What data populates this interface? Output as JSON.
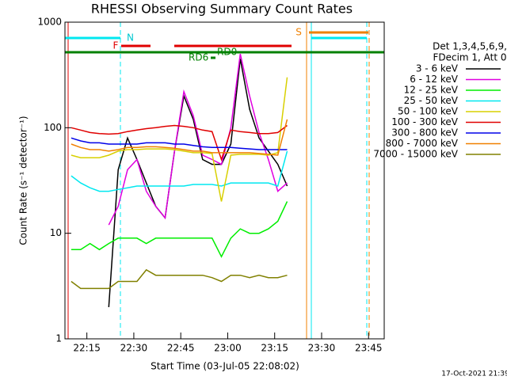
{
  "chart_data": {
    "type": "line",
    "title": "RHESSI Observing Summary Count Rates",
    "x_label": "Start Time (03-Jul-05 22:08:02)",
    "y_label": "Count Rate (s⁻¹ detector⁻¹)",
    "log_y": true,
    "xlim": [
      "22:08",
      "23:50"
    ],
    "xticks": [
      "22:15",
      "22:30",
      "22:45",
      "23:00",
      "23:15",
      "23:30",
      "23:45"
    ],
    "ylim": [
      1,
      1000
    ],
    "yticks": [
      1,
      10,
      100,
      1000
    ],
    "legend_title": [
      "Det 1,3,4,5,6,9,",
      "FDecim 1, Att 0"
    ],
    "flags": [
      "N",
      "F",
      "S",
      "RD0",
      "RD6"
    ],
    "footer": "17-Oct-2021 21:39",
    "x": [
      "22:10",
      "22:13",
      "22:16",
      "22:19",
      "22:22",
      "22:25",
      "22:28",
      "22:31",
      "22:34",
      "22:37",
      "22:40",
      "22:43",
      "22:46",
      "22:49",
      "22:52",
      "22:55",
      "22:58",
      "23:01",
      "23:04",
      "23:07",
      "23:10",
      "23:13",
      "23:16",
      "23:19"
    ],
    "series": [
      {
        "name": "3 - 6 keV",
        "color": "#000000",
        "values": [
          null,
          null,
          null,
          null,
          2,
          40,
          80,
          50,
          30,
          18,
          14,
          60,
          200,
          120,
          50,
          45,
          45,
          70,
          450,
          150,
          80,
          60,
          45,
          28
        ]
      },
      {
        "name": "6 - 12 keV",
        "color": "#e000e0",
        "values": [
          null,
          null,
          null,
          null,
          12,
          18,
          40,
          50,
          25,
          18,
          14,
          60,
          220,
          130,
          55,
          50,
          45,
          100,
          500,
          200,
          90,
          50,
          25,
          30
        ]
      },
      {
        "name": "12 - 25 keV",
        "color": "#00ee00",
        "values": [
          7,
          7,
          8,
          7,
          8,
          9,
          9,
          9,
          8,
          9,
          9,
          9,
          9,
          9,
          9,
          9,
          6,
          9,
          11,
          10,
          10,
          11,
          13,
          20
        ]
      },
      {
        "name": "25 - 50 keV",
        "color": "#00e8f0",
        "values": [
          35,
          30,
          27,
          25,
          25,
          26,
          27,
          28,
          28,
          28,
          28,
          28,
          28,
          29,
          29,
          29,
          28,
          30,
          30,
          30,
          30,
          30,
          28,
          60
        ]
      },
      {
        "name": "50 - 100 keV",
        "color": "#d8d000",
        "values": [
          55,
          52,
          52,
          52,
          55,
          60,
          62,
          62,
          63,
          63,
          63,
          62,
          60,
          58,
          58,
          57,
          20,
          55,
          56,
          56,
          56,
          55,
          58,
          300
        ]
      },
      {
        "name": "100 - 300 keV",
        "color": "#e00000",
        "values": [
          100,
          95,
          90,
          88,
          87,
          88,
          92,
          95,
          98,
          100,
          103,
          105,
          103,
          100,
          95,
          92,
          50,
          95,
          92,
          90,
          88,
          88,
          90,
          105
        ]
      },
      {
        "name": "300 - 800 keV",
        "color": "#0000e8",
        "values": [
          80,
          75,
          72,
          72,
          70,
          70,
          70,
          70,
          72,
          72,
          72,
          70,
          70,
          68,
          66,
          65,
          65,
          65,
          64,
          63,
          62,
          62,
          62,
          62
        ]
      },
      {
        "name": "800 - 7000 keV",
        "color": "#f08000",
        "values": [
          70,
          65,
          62,
          62,
          60,
          62,
          65,
          65,
          66,
          66,
          65,
          64,
          62,
          60,
          60,
          58,
          58,
          58,
          58,
          58,
          57,
          56,
          55,
          120
        ]
      },
      {
        "name": "7000 - 15000 keV",
        "color": "#808000",
        "values": [
          3.5,
          3,
          3,
          3,
          3,
          3.5,
          3.5,
          3.5,
          4.5,
          4,
          4,
          4,
          4,
          4,
          4,
          3.8,
          3.5,
          4,
          4,
          3.8,
          4,
          3.8,
          3.8,
          4
        ]
      }
    ]
  }
}
